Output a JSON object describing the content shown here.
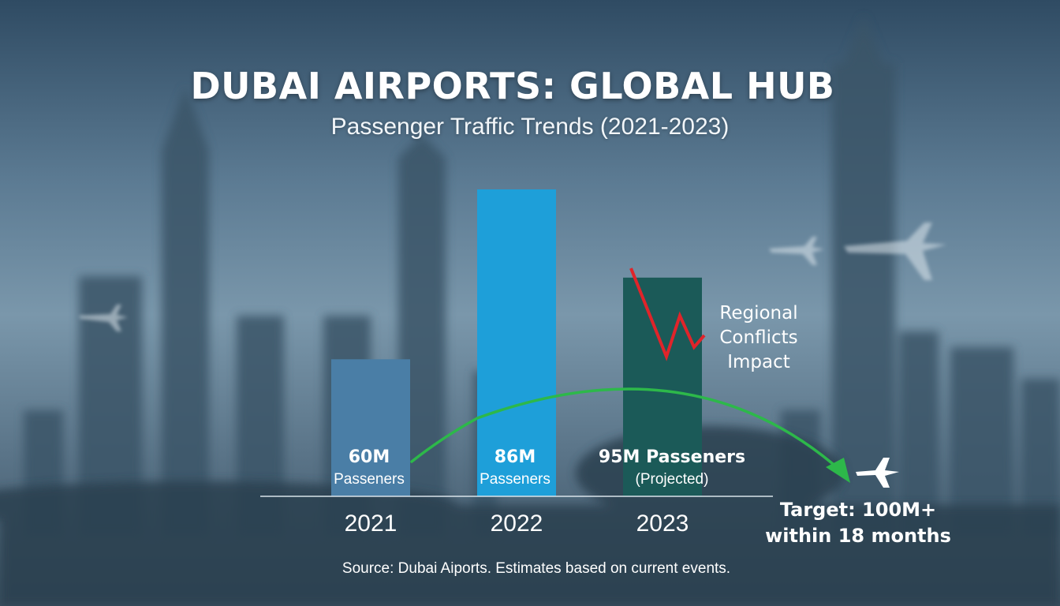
{
  "title": "DUBAI AIRPORTS: GLOBAL HUB",
  "subtitle": "Passenger Traffic Trends (2021-2023)",
  "source": "Source: Dubai Aiports. Estimates based on current events.",
  "colors": {
    "bar_2021": "#4a7ea6",
    "bar_2022": "#1e9fd9",
    "bar_2023": "#1b5a58",
    "trend_arrow": "#2db84a",
    "conflict_line": "#e0242a",
    "text": "#ffffff"
  },
  "chart_data": {
    "type": "bar",
    "title": "DUBAI AIRPORTS: GLOBAL HUB",
    "subtitle": "Passenger Traffic Trends (2021-2023)",
    "categories": [
      "2021",
      "2022",
      "2023"
    ],
    "values": [
      60,
      86,
      95
    ],
    "units": "M",
    "bar_labels": [
      {
        "value_text": "60M",
        "sub_text": "Passeners"
      },
      {
        "value_text": "86M",
        "sub_text": "Passeners"
      },
      {
        "value_text": "95M Passeners",
        "sub_text": "(Projected)"
      }
    ],
    "annotations": {
      "conflict": [
        "Regional",
        "Conflicts",
        "Impact"
      ],
      "target": [
        "Target: 100M+",
        "within 18 months"
      ]
    },
    "ylim": [
      0,
      100
    ],
    "grid": false,
    "legend": "none",
    "xlabel": "",
    "ylabel": ""
  },
  "icons": [
    "airplane-icon",
    "background-airplane-icon"
  ]
}
